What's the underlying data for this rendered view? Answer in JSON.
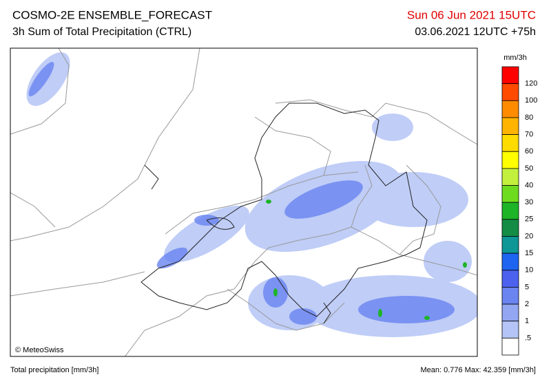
{
  "header": {
    "title": "COSMO-2E ENSEMBLE_FORECAST",
    "subtitle": "3h Sum of Total Precipitation (CTRL)",
    "valid_time": "Sun 06 Jun 2021 15UTC",
    "run_time": "03.06.2021 12UTC +75h"
  },
  "map": {
    "credit": "© MeteoSwiss"
  },
  "legend": {
    "unit": "mm/3h",
    "labels": [
      "120",
      "100",
      "80",
      "70",
      "60",
      "50",
      "40",
      "30",
      "25",
      "20",
      "15",
      "10",
      "5",
      "2",
      "1",
      ".5"
    ],
    "colors": [
      "#fe0000",
      "#ff4a00",
      "#ff8c00",
      "#ffb400",
      "#ffdc00",
      "#ffff00",
      "#c3f03c",
      "#6edc1e",
      "#1eb428",
      "#148c46",
      "#0f9696",
      "#1e64f0",
      "#4c62ee",
      "#6a84f0",
      "#92a6f2",
      "#b4c4f6",
      "#ffffff"
    ]
  },
  "footer": {
    "left": "Total precipitation [mm/3h]",
    "right": "Mean:  0.776 Max: 42.359 [mm/3h]"
  }
}
